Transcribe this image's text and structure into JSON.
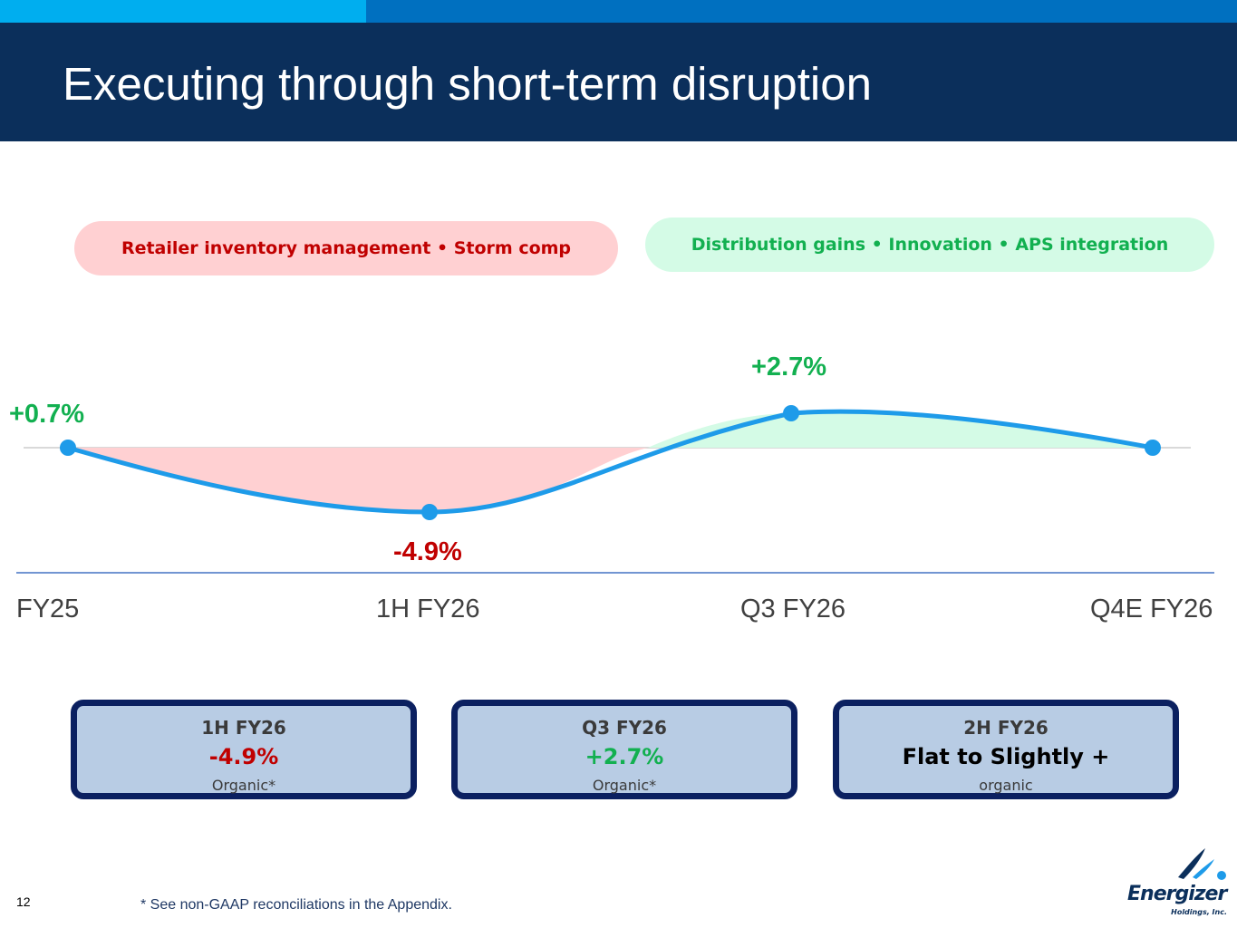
{
  "slide": {
    "title": "Executing through short-term disruption",
    "page_number": "12",
    "footnote": "* See non-GAAP reconciliations in the Appendix."
  },
  "pills": {
    "headwinds": "Retailer inventory management • Storm comp",
    "tailwinds": "Distribution gains • Innovation • APS integration"
  },
  "chart_data": {
    "type": "line",
    "categories": [
      "FY25",
      "1H FY26",
      "Q3 FY26",
      "Q4E FY26"
    ],
    "series": [
      {
        "values": [
          0.7,
          -4.9,
          2.7,
          0.0
        ]
      }
    ],
    "data_labels": [
      "+0.7%",
      "-4.9%",
      "+2.7%",
      ""
    ],
    "baseline_labeled": false,
    "colors": {
      "line": "#1e9be9",
      "negative_fill": "#ffd0d2",
      "positive_fill": "#d4fbe6",
      "positive_label": "#12b050",
      "negative_label": "#c00000"
    }
  },
  "cards": [
    {
      "title": "1H FY26",
      "value": "-4.9%",
      "sub": "Organic*",
      "value_color": "red"
    },
    {
      "title": "Q3 FY26",
      "value": "+2.7%",
      "sub": "Organic*",
      "value_color": "green"
    },
    {
      "title": "2H FY26",
      "value": "Flat to Slightly +",
      "sub": "organic",
      "value_color": "black"
    }
  ],
  "logo": {
    "name": "Energizer",
    "sub": "Holdings, Inc.",
    "icon": "energizer-swoosh-icon"
  }
}
